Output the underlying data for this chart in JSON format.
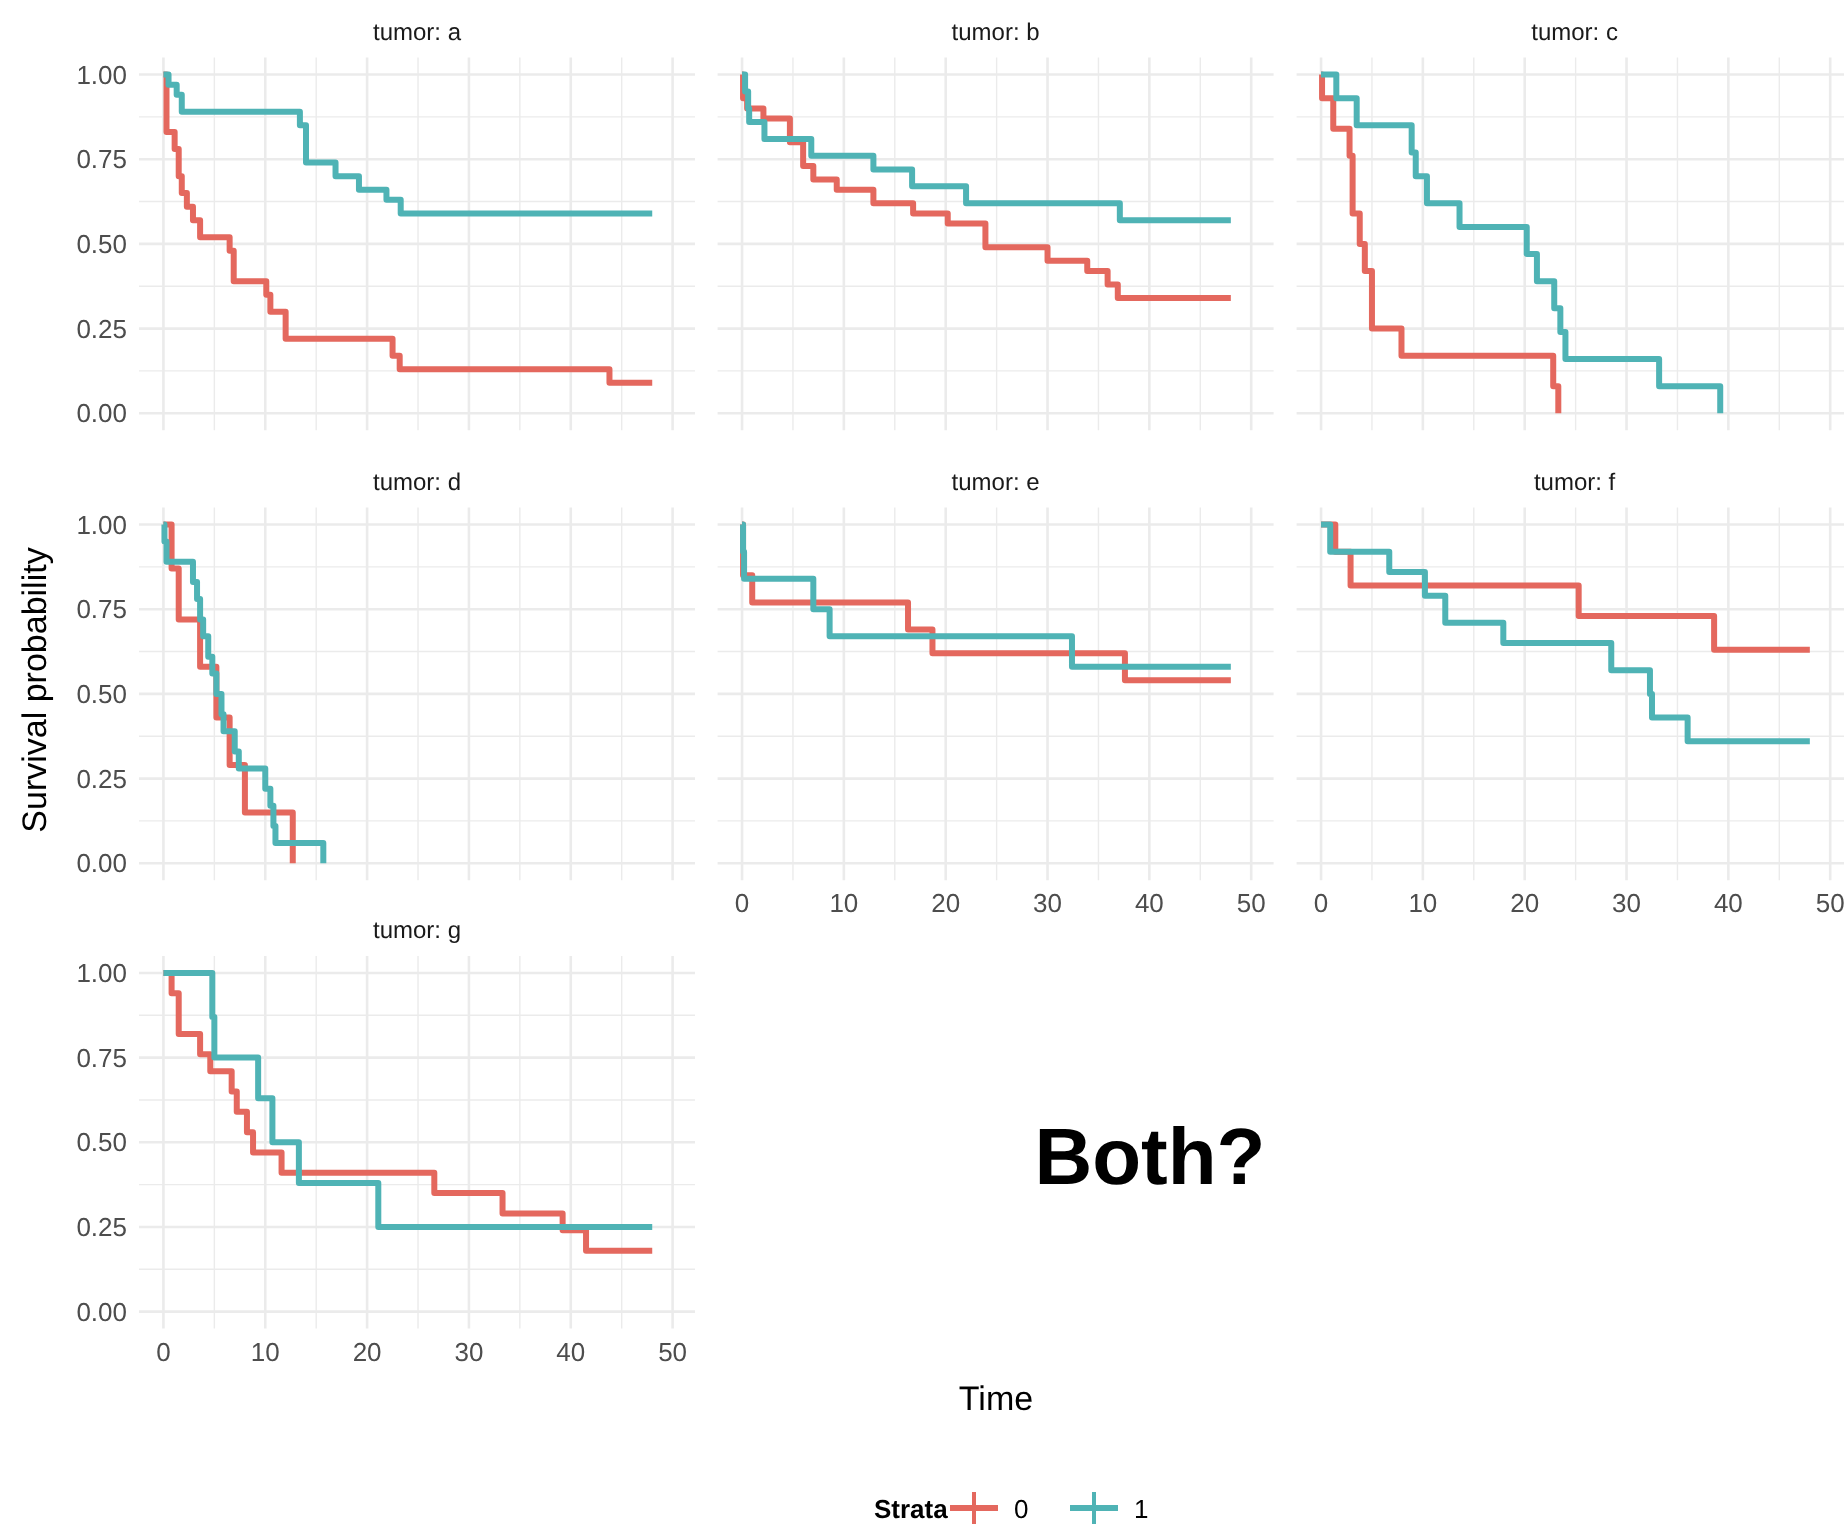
{
  "chart_data": [
    {
      "type": "step",
      "title": "tumor: a",
      "legend_title": "Strata",
      "legend": "bottom",
      "xlim": [
        -2.4,
        52.2
      ],
      "ylim": [
        -0.05,
        1.05
      ],
      "xticks": [
        0,
        {
          "value": 5,
          "label": null
        },
        10,
        {
          "value": 15,
          "label": null
        },
        20,
        {
          "value": 25,
          "label": null
        },
        30,
        {
          "value": 35,
          "label": null
        },
        40,
        {
          "value": 45,
          "label": null
        },
        50
      ],
      "yticks": [
        {
          "value": 0,
          "label": "0.00"
        },
        {
          "value": 0.125,
          "label": null
        },
        {
          "value": 0.25,
          "label": "0.25"
        },
        {
          "value": 0.375,
          "label": null
        },
        {
          "value": 0.5,
          "label": "0.50"
        },
        {
          "value": 0.625,
          "label": null
        },
        {
          "value": 0.75,
          "label": "0.75"
        },
        {
          "value": 0.875,
          "label": null
        },
        {
          "value": 1,
          "label": "1.00"
        }
      ],
      "grid": true,
      "tick_labels": "y",
      "series": [
        {
          "name": "0",
          "color": "#e4685e",
          "x": [
            0,
            0.3,
            1.1,
            1.5,
            1.8,
            2.3,
            2.9,
            3.6,
            6.5,
            6.9,
            10.1,
            10.5,
            12.0,
            22.5,
            23.2,
            43.8,
            48
          ],
          "values": [
            1,
            0.83,
            0.78,
            0.7,
            0.65,
            0.61,
            0.57,
            0.52,
            0.48,
            0.39,
            0.35,
            0.3,
            0.22,
            0.17,
            0.13,
            0.09,
            0.09
          ]
        },
        {
          "name": "1",
          "color": "#4fb3b5",
          "x": [
            0,
            0.5,
            1.3,
            1.8,
            13.4,
            14.0,
            16.9,
            19.2,
            21.9,
            23.3,
            48
          ],
          "values": [
            1,
            0.97,
            0.94,
            0.89,
            0.85,
            0.74,
            0.7,
            0.66,
            0.63,
            0.59,
            0.59
          ]
        }
      ]
    },
    {
      "type": "step",
      "title": "tumor: b",
      "xlim": [
        -2.4,
        52.2
      ],
      "ylim": [
        -0.05,
        1.05
      ],
      "xticks": [
        0,
        {
          "value": 5,
          "label": null
        },
        10,
        {
          "value": 15,
          "label": null
        },
        20,
        {
          "value": 25,
          "label": null
        },
        30,
        {
          "value": 35,
          "label": null
        },
        40,
        {
          "value": 45,
          "label": null
        },
        50
      ],
      "yticks": [
        0,
        {
          "value": 0.125,
          "label": null
        },
        0.25,
        {
          "value": 0.375,
          "label": null
        },
        0.5,
        {
          "value": 0.625,
          "label": null
        },
        0.75,
        {
          "value": 0.875,
          "label": null
        },
        1
      ],
      "grid": true,
      "tick_labels": false,
      "series": [
        {
          "color": "#e4685e",
          "x": [
            0,
            0.1,
            0.5,
            2.1,
            4.7,
            6.0,
            7.0,
            9.3,
            12.9,
            16.8,
            20.2,
            23.9,
            30.0,
            33.9,
            35.9,
            36.9,
            48
          ],
          "values": [
            1,
            0.93,
            0.9,
            0.87,
            0.8,
            0.73,
            0.69,
            0.66,
            0.62,
            0.59,
            0.56,
            0.49,
            0.45,
            0.42,
            0.38,
            0.34,
            0.34
          ]
        },
        {
          "color": "#4fb3b5",
          "x": [
            0,
            0.3,
            0.6,
            0.7,
            2.2,
            6.8,
            12.9,
            16.7,
            22.0,
            37.1,
            48
          ],
          "values": [
            1,
            0.95,
            0.9,
            0.86,
            0.81,
            0.76,
            0.72,
            0.67,
            0.62,
            0.57,
            0.57
          ]
        }
      ]
    },
    {
      "type": "step",
      "title": "tumor: c",
      "xlim": [
        -2.4,
        52.2
      ],
      "ylim": [
        -0.05,
        1.05
      ],
      "xticks": [
        0,
        {
          "value": 5,
          "label": null
        },
        10,
        {
          "value": 15,
          "label": null
        },
        20,
        {
          "value": 25,
          "label": null
        },
        30,
        {
          "value": 35,
          "label": null
        },
        40,
        {
          "value": 45,
          "label": null
        },
        50
      ],
      "yticks": [
        0,
        {
          "value": 0.125,
          "label": null
        },
        0.25,
        {
          "value": 0.375,
          "label": null
        },
        0.5,
        {
          "value": 0.625,
          "label": null
        },
        0.75,
        {
          "value": 0.875,
          "label": null
        },
        1
      ],
      "grid": true,
      "tick_labels": false,
      "series": [
        {
          "color": "#e4685e",
          "x": [
            0,
            0.1,
            1.2,
            2.8,
            3.1,
            3.8,
            4.3,
            5.0,
            7.9,
            22.8,
            23.3
          ],
          "values": [
            1,
            0.93,
            0.84,
            0.76,
            0.59,
            0.5,
            0.42,
            0.25,
            0.17,
            0.08,
            0
          ]
        },
        {
          "color": "#4fb3b5",
          "x": [
            0,
            1.5,
            3.5,
            8.9,
            9.3,
            10.4,
            13.6,
            20.2,
            21.2,
            22.9,
            23.5,
            24.0,
            33.2,
            39.2
          ],
          "values": [
            1,
            0.93,
            0.85,
            0.77,
            0.7,
            0.62,
            0.55,
            0.47,
            0.39,
            0.31,
            0.24,
            0.16,
            0.08,
            0
          ]
        }
      ]
    },
    {
      "type": "step",
      "title": "tumor: d",
      "ylabel": "Survival probability",
      "xlim": [
        -2.4,
        52.2
      ],
      "ylim": [
        -0.05,
        1.05
      ],
      "xticks": [
        0,
        {
          "value": 5,
          "label": null
        },
        10,
        {
          "value": 15,
          "label": null
        },
        20,
        {
          "value": 25,
          "label": null
        },
        30,
        {
          "value": 35,
          "label": null
        },
        40,
        {
          "value": 45,
          "label": null
        },
        50
      ],
      "yticks": [
        {
          "value": 0,
          "label": "0.00"
        },
        {
          "value": 0.125,
          "label": null
        },
        {
          "value": 0.25,
          "label": "0.25"
        },
        {
          "value": 0.375,
          "label": null
        },
        {
          "value": 0.5,
          "label": "0.50"
        },
        {
          "value": 0.625,
          "label": null
        },
        {
          "value": 0.75,
          "label": "0.75"
        },
        {
          "value": 0.875,
          "label": null
        },
        {
          "value": 1,
          "label": "1.00"
        }
      ],
      "grid": true,
      "tick_labels": "y",
      "series": [
        {
          "color": "#e4685e",
          "x": [
            0,
            0.8,
            1.5,
            3.6,
            5.2,
            6.5,
            8.0,
            12.7
          ],
          "values": [
            1,
            0.87,
            0.72,
            0.58,
            0.43,
            0.29,
            0.15,
            0
          ]
        },
        {
          "color": "#4fb3b5",
          "x": [
            0,
            0.1,
            0.3,
            2.9,
            3.3,
            3.6,
            3.9,
            4.4,
            4.8,
            5.2,
            5.7,
            5.9,
            7.0,
            7.4,
            10.0,
            10.5,
            10.8,
            11.0,
            15.7
          ],
          "values": [
            1,
            0.95,
            0.89,
            0.83,
            0.78,
            0.72,
            0.67,
            0.61,
            0.56,
            0.5,
            0.44,
            0.39,
            0.33,
            0.28,
            0.22,
            0.17,
            0.11,
            0.06,
            0
          ]
        }
      ]
    },
    {
      "type": "step",
      "title": "tumor: e",
      "xlabel": "Time",
      "xlim": [
        -2.4,
        52.2
      ],
      "ylim": [
        -0.05,
        1.05
      ],
      "xticks": [
        0,
        {
          "value": 5,
          "label": null
        },
        10,
        {
          "value": 15,
          "label": null
        },
        20,
        {
          "value": 25,
          "label": null
        },
        30,
        {
          "value": 35,
          "label": null
        },
        40,
        {
          "value": 45,
          "label": null
        },
        50
      ],
      "yticks": [
        0,
        {
          "value": 0.125,
          "label": null
        },
        0.25,
        {
          "value": 0.375,
          "label": null
        },
        0.5,
        {
          "value": 0.625,
          "label": null
        },
        0.75,
        {
          "value": 0.875,
          "label": null
        },
        1
      ],
      "grid": true,
      "tick_labels": "x",
      "series": [
        {
          "color": "#e4685e",
          "x": [
            0,
            0.1,
            1.0,
            16.3,
            18.7,
            37.6,
            48
          ],
          "values": [
            1,
            0.85,
            0.77,
            0.69,
            0.62,
            0.54,
            0.54
          ]
        },
        {
          "color": "#4fb3b5",
          "x": [
            0,
            0.1,
            0.2,
            7.0,
            8.6,
            32.4,
            48
          ],
          "values": [
            1,
            0.92,
            0.84,
            0.75,
            0.67,
            0.58,
            0.58
          ]
        }
      ]
    },
    {
      "type": "step",
      "title": "tumor: f",
      "xlim": [
        -2.4,
        52.2
      ],
      "ylim": [
        -0.05,
        1.05
      ],
      "xticks": [
        0,
        {
          "value": 5,
          "label": null
        },
        10,
        {
          "value": 15,
          "label": null
        },
        20,
        {
          "value": 25,
          "label": null
        },
        30,
        {
          "value": 35,
          "label": null
        },
        40,
        {
          "value": 45,
          "label": null
        },
        50
      ],
      "yticks": [
        0,
        {
          "value": 0.125,
          "label": null
        },
        0.25,
        {
          "value": 0.375,
          "label": null
        },
        0.5,
        {
          "value": 0.625,
          "label": null
        },
        0.75,
        {
          "value": 0.875,
          "label": null
        },
        1
      ],
      "grid": true,
      "tick_labels": "x",
      "series": [
        {
          "color": "#e4685e",
          "x": [
            0,
            1.4,
            2.9,
            25.3,
            38.6,
            48
          ],
          "values": [
            1,
            0.92,
            0.82,
            0.73,
            0.63,
            0.63
          ]
        },
        {
          "color": "#4fb3b5",
          "x": [
            0,
            0.9,
            6.7,
            10.2,
            12.2,
            17.9,
            28.5,
            32.3,
            32.5,
            36.0,
            48
          ],
          "values": [
            1,
            0.92,
            0.86,
            0.79,
            0.71,
            0.65,
            0.57,
            0.5,
            0.43,
            0.36,
            0.36
          ]
        }
      ]
    },
    {
      "type": "step",
      "title": "tumor: g",
      "xlim": [
        -2.4,
        52.2
      ],
      "ylim": [
        -0.05,
        1.05
      ],
      "xticks": [
        0,
        {
          "value": 5,
          "label": null
        },
        10,
        {
          "value": 15,
          "label": null
        },
        20,
        {
          "value": 25,
          "label": null
        },
        30,
        {
          "value": 35,
          "label": null
        },
        40,
        {
          "value": 45,
          "label": null
        },
        50
      ],
      "yticks": [
        {
          "value": 0,
          "label": "0.00"
        },
        {
          "value": 0.125,
          "label": null
        },
        {
          "value": 0.25,
          "label": "0.25"
        },
        {
          "value": 0.375,
          "label": null
        },
        {
          "value": 0.5,
          "label": "0.50"
        },
        {
          "value": 0.625,
          "label": null
        },
        {
          "value": 0.75,
          "label": "0.75"
        },
        {
          "value": 0.875,
          "label": null
        },
        {
          "value": 1,
          "label": "1.00"
        }
      ],
      "grid": true,
      "series": [
        {
          "color": "#e4685e",
          "x": [
            0,
            0.8,
            1.5,
            3.6,
            4.6,
            6.7,
            7.2,
            8.2,
            8.8,
            11.6,
            26.6,
            33.3,
            39.2,
            41.5,
            48
          ],
          "values": [
            1,
            0.94,
            0.82,
            0.76,
            0.71,
            0.65,
            0.59,
            0.53,
            0.47,
            0.41,
            0.35,
            0.29,
            0.24,
            0.18,
            0.18
          ]
        },
        {
          "color": "#4fb3b5",
          "x": [
            0,
            4.8,
            5.0,
            9.3,
            10.7,
            13.3,
            21.1,
            48
          ],
          "values": [
            1,
            0.87,
            0.75,
            0.63,
            0.5,
            0.38,
            0.25,
            0.25
          ]
        }
      ]
    },
    {
      "type": "other",
      "annotations": [
        "Both?"
      ]
    }
  ]
}
